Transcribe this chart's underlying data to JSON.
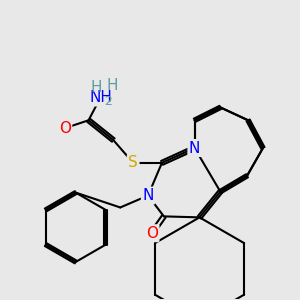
{
  "background_color": "#e8e8e8",
  "atom_colors": {
    "N": "#0000ff",
    "O": "#ff0000",
    "S": "#ccaa00",
    "H": "#5f9ea0",
    "C": "#000000"
  },
  "bond_color": "#000000",
  "bond_width": 1.5,
  "font_size": 11
}
